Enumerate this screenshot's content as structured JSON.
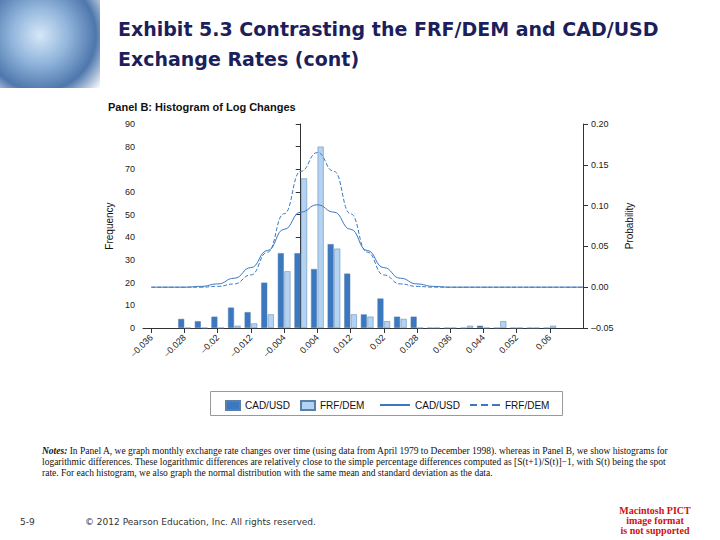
{
  "slide": {
    "title": "Exhibit 5.3   Contrasting the FRF/DEM and CAD/USD Exchange Rates (cont)",
    "notes_label": "Notes:",
    "notes": "In Panel A, we graph monthly exchange rate changes over time (using data from April 1979 to December 1998). whereas in Panel B, we show histograms for logarithmic differences. These logarithmic differences are relatively close to the simple percentage differences computed as [S(t+1)/S(t)]−1, with S(t) being the spot rate. For each histogram, we also graph the normal distribution with the same mean and standard deviation as the data.",
    "page": "5-9",
    "copyright": "© 2012 Pearson Education, Inc. All rights reserved.",
    "placeholder": [
      "Macintosh PICT",
      "image format",
      "is not supported"
    ]
  },
  "chart_data": {
    "type": "histogram",
    "title": "Panel B: Histogram of Log Changes",
    "y_label": "Frequency",
    "y2_label": "Probability",
    "bins": [
      -0.03,
      -0.026,
      -0.022,
      -0.018,
      -0.014,
      -0.01,
      -0.006,
      -0.002,
      0.002,
      0.006,
      0.01,
      0.014,
      0.018,
      0.022,
      0.026,
      0.03,
      0.034,
      0.038,
      0.042,
      0.046,
      0.05,
      0.054,
      0.058,
      0.062
    ],
    "series": [
      {
        "name": "CAD/USD",
        "type": "bar",
        "color": "#3a78c2",
        "values": [
          4,
          3,
          5,
          9,
          7,
          20,
          33,
          33,
          26,
          37,
          24,
          6,
          13,
          5,
          5,
          0,
          0,
          0,
          1,
          0,
          0,
          0,
          0
        ]
      },
      {
        "name": "FRF/DEM",
        "type": "bar",
        "color": "#b3d3f2",
        "values": [
          0,
          0,
          0,
          1,
          2,
          6,
          25,
          66,
          80,
          35,
          6,
          5,
          3,
          4,
          0,
          0,
          0,
          1,
          0,
          3,
          0,
          0,
          1
        ]
      },
      {
        "name": "CAD/USD",
        "type": "line",
        "color": "#3a78c2",
        "line_style": "solid",
        "axis": "y2",
        "x": [
          -0.036,
          -0.032,
          -0.028,
          -0.024,
          -0.02,
          -0.016,
          -0.012,
          -0.008,
          -0.004,
          0,
          0.004,
          0.008,
          0.012,
          0.016,
          0.02,
          0.024,
          0.028,
          0.032,
          0.036,
          0.04,
          0.044,
          0.048,
          0.052,
          0.056,
          0.06,
          0.064,
          0.068
        ],
        "values": [
          0,
          0,
          0,
          0.001,
          0.004,
          0.011,
          0.024,
          0.045,
          0.071,
          0.092,
          0.101,
          0.092,
          0.071,
          0.045,
          0.024,
          0.011,
          0.004,
          0.001,
          0,
          0,
          0,
          0,
          0,
          0,
          0,
          0,
          0
        ]
      },
      {
        "name": "FRF/DEM",
        "type": "line",
        "color": "#3a78c2",
        "line_style": "dashed",
        "axis": "y2",
        "x": [
          -0.036,
          -0.032,
          -0.028,
          -0.024,
          -0.02,
          -0.016,
          -0.012,
          -0.008,
          -0.004,
          0,
          0.004,
          0.008,
          0.012,
          0.016,
          0.02,
          0.024,
          0.028,
          0.032,
          0.036,
          0.04,
          0.044,
          0.048,
          0.052,
          0.056,
          0.06,
          0.064,
          0.068
        ],
        "values": [
          0,
          0,
          0,
          0,
          0.001,
          0.004,
          0.015,
          0.043,
          0.09,
          0.142,
          0.165,
          0.142,
          0.09,
          0.043,
          0.015,
          0.004,
          0.001,
          0,
          0,
          0,
          0,
          0,
          0,
          0,
          0,
          0,
          0
        ]
      }
    ],
    "xlim": [
      -0.038,
      0.068
    ],
    "xticks": [
      {
        "value": -0.036,
        "label": "–0.036"
      },
      {
        "value": -0.028,
        "label": "–0.028"
      },
      {
        "value": -0.02,
        "label": "–0.02"
      },
      {
        "value": -0.012,
        "label": "–0.012"
      },
      {
        "value": -0.004,
        "label": "–0.004"
      },
      0.004,
      0.012,
      0.02,
      0.028,
      0.036,
      0.044,
      0.052,
      0.06
    ],
    "ylim": [
      0,
      90
    ],
    "yticks": [
      0,
      10,
      20,
      30,
      40,
      50,
      60,
      70,
      80,
      90
    ],
    "y2lim": [
      -0.05,
      0.2
    ],
    "y2ticks": [
      {
        "value": -0.05,
        "label": "–0.05"
      },
      {
        "value": 0,
        "label": "0.00"
      },
      {
        "value": 0.05,
        "label": "0.05"
      },
      {
        "value": 0.1,
        "label": "0.10"
      },
      {
        "value": 0.15,
        "label": "0.15"
      },
      {
        "value": 0.2,
        "label": "0.20"
      }
    ],
    "legend": "bottom",
    "grid": false
  }
}
